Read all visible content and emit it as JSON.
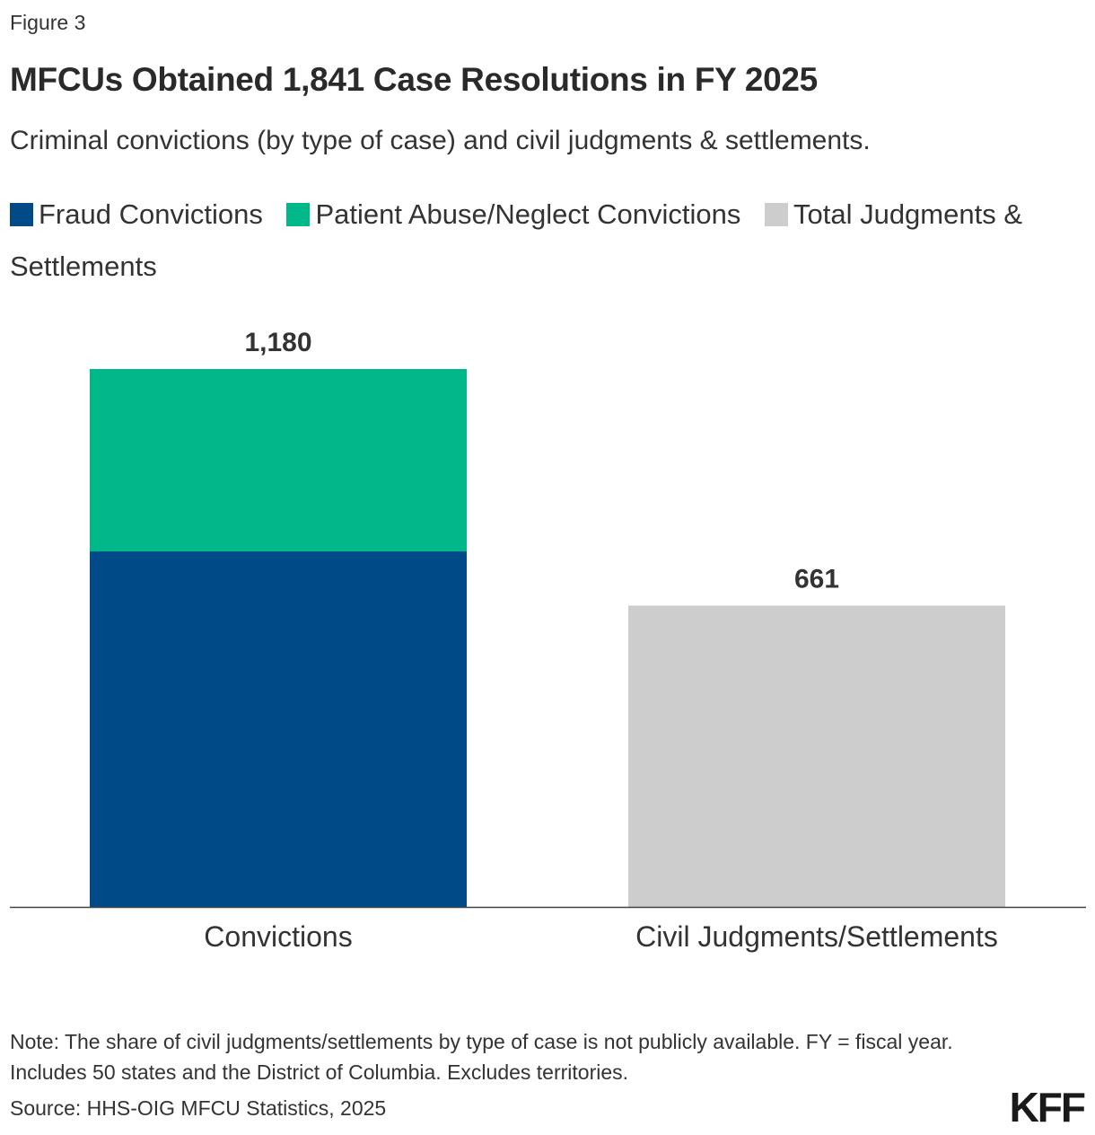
{
  "figure_label": "Figure 3",
  "title": "MFCUs Obtained 1,841 Case Resolutions in FY 2025",
  "subtitle": "Criminal convictions (by type of case) and civil judgments & settlements.",
  "legend": [
    {
      "label": "Fraud Convictions",
      "color": "#004A87"
    },
    {
      "label": "Patient Abuse/Neglect Convictions",
      "color": "#00B78A"
    },
    {
      "label": "Total Judgments & Settlements",
      "color": "#CDCDCD"
    }
  ],
  "chart_data": {
    "type": "bar",
    "stacked": true,
    "categories": [
      "Convictions",
      "Civil Judgments/Settlements"
    ],
    "series": [
      {
        "name": "Fraud Convictions",
        "color": "#004A87",
        "values": [
          780,
          0
        ]
      },
      {
        "name": "Patient Abuse/Neglect Convictions",
        "color": "#00B78A",
        "values": [
          400,
          0
        ]
      },
      {
        "name": "Total Judgments & Settlements",
        "color": "#CDCDCD",
        "values": [
          0,
          661
        ]
      }
    ],
    "totals": [
      "1,180",
      "661"
    ],
    "ylim": [
      0,
      1180
    ],
    "grid": false,
    "legend_position": "top"
  },
  "note": "Note: The share of civil judgments/settlements by type of case is not publicly available. FY = fiscal year. Includes 50 states and the District of Columbia. Excludes territories.",
  "source": "Source: HHS-OIG MFCU Statistics, 2025",
  "logo": "KFF"
}
